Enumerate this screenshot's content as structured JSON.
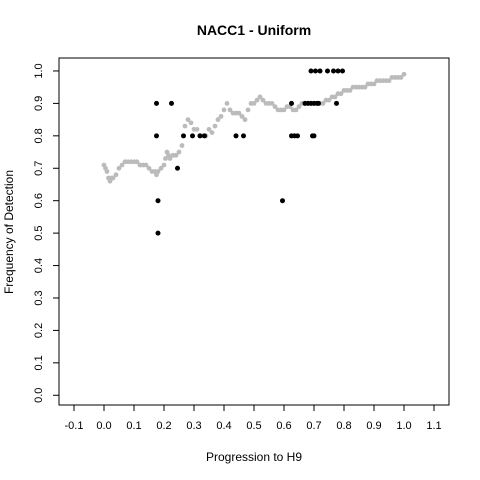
{
  "chart_data": {
    "type": "scatter",
    "title": "NACC1 - Uniform",
    "xlabel": "Progression to H9",
    "ylabel": "Frequency of Detection",
    "xlim": [
      -0.15,
      1.15
    ],
    "ylim": [
      -0.03,
      1.04
    ],
    "x_ticks": [
      "-0.1",
      "0.0",
      "0.1",
      "0.2",
      "0.3",
      "0.4",
      "0.5",
      "0.6",
      "0.7",
      "0.8",
      "0.9",
      "1.0",
      "1.1"
    ],
    "y_ticks": [
      "0.0",
      "0.1",
      "0.2",
      "0.3",
      "0.4",
      "0.5",
      "0.6",
      "0.7",
      "0.8",
      "0.9",
      "1.0"
    ],
    "grid": false,
    "legend": "none",
    "series": [
      {
        "color": "#bbbbbb",
        "x": [
          0.0,
          0.005,
          0.01,
          0.015,
          0.02,
          0.025,
          0.03,
          0.04,
          0.05,
          0.06,
          0.07,
          0.08,
          0.09,
          0.1,
          0.11,
          0.12,
          0.13,
          0.14,
          0.15,
          0.16,
          0.17,
          0.175,
          0.18,
          0.19,
          0.2,
          0.205,
          0.21,
          0.215,
          0.22,
          0.23,
          0.24,
          0.25,
          0.26,
          0.27,
          0.28,
          0.29,
          0.3,
          0.31,
          0.32,
          0.33,
          0.34,
          0.35,
          0.36,
          0.37,
          0.38,
          0.39,
          0.4,
          0.41,
          0.42,
          0.43,
          0.44,
          0.45,
          0.46,
          0.47,
          0.48,
          0.49,
          0.5,
          0.51,
          0.52,
          0.53,
          0.54,
          0.55,
          0.56,
          0.57,
          0.58,
          0.59,
          0.6,
          0.61,
          0.62,
          0.63,
          0.64,
          0.65,
          0.66,
          0.67,
          0.68,
          0.69,
          0.7,
          0.71,
          0.72,
          0.73,
          0.74,
          0.75,
          0.76,
          0.77,
          0.78,
          0.79,
          0.8,
          0.81,
          0.82,
          0.83,
          0.84,
          0.85,
          0.86,
          0.87,
          0.88,
          0.89,
          0.9,
          0.91,
          0.92,
          0.93,
          0.94,
          0.95,
          0.96,
          0.97,
          0.98,
          0.99,
          1.0
        ],
        "y": [
          0.71,
          0.7,
          0.69,
          0.67,
          0.66,
          0.67,
          0.67,
          0.68,
          0.7,
          0.71,
          0.72,
          0.72,
          0.72,
          0.72,
          0.72,
          0.71,
          0.71,
          0.71,
          0.7,
          0.69,
          0.69,
          0.68,
          0.69,
          0.7,
          0.71,
          0.73,
          0.75,
          0.74,
          0.73,
          0.74,
          0.74,
          0.75,
          0.77,
          0.83,
          0.85,
          0.84,
          0.82,
          0.82,
          0.8,
          0.8,
          0.8,
          0.82,
          0.81,
          0.83,
          0.85,
          0.86,
          0.88,
          0.9,
          0.88,
          0.87,
          0.87,
          0.87,
          0.86,
          0.85,
          0.88,
          0.9,
          0.9,
          0.91,
          0.92,
          0.91,
          0.9,
          0.9,
          0.9,
          0.89,
          0.88,
          0.88,
          0.88,
          0.89,
          0.89,
          0.88,
          0.88,
          0.89,
          0.9,
          0.9,
          0.9,
          0.9,
          0.9,
          0.9,
          0.9,
          0.9,
          0.91,
          0.91,
          0.92,
          0.92,
          0.93,
          0.93,
          0.94,
          0.94,
          0.94,
          0.95,
          0.95,
          0.95,
          0.95,
          0.95,
          0.96,
          0.96,
          0.96,
          0.97,
          0.97,
          0.97,
          0.97,
          0.97,
          0.98,
          0.98,
          0.98,
          0.98,
          0.99
        ]
      },
      {
        "color": "#000000",
        "x": [
          0.175,
          0.175,
          0.18,
          0.18,
          0.225,
          0.245,
          0.265,
          0.295,
          0.32,
          0.335,
          0.44,
          0.465,
          0.595,
          0.625,
          0.635,
          0.645,
          0.625,
          0.67,
          0.68,
          0.69,
          0.7,
          0.71,
          0.695,
          0.7,
          0.715,
          0.69,
          0.705,
          0.72,
          0.745,
          0.765,
          0.78,
          0.795,
          0.775
        ],
        "y": [
          0.8,
          0.9,
          0.6,
          0.5,
          0.9,
          0.7,
          0.8,
          0.8,
          0.8,
          0.8,
          0.8,
          0.8,
          0.6,
          0.8,
          0.8,
          0.8,
          0.9,
          0.9,
          0.9,
          0.9,
          0.9,
          0.9,
          0.8,
          0.8,
          0.9,
          1.0,
          1.0,
          1.0,
          1.0,
          1.0,
          1.0,
          1.0,
          0.9
        ]
      }
    ]
  }
}
